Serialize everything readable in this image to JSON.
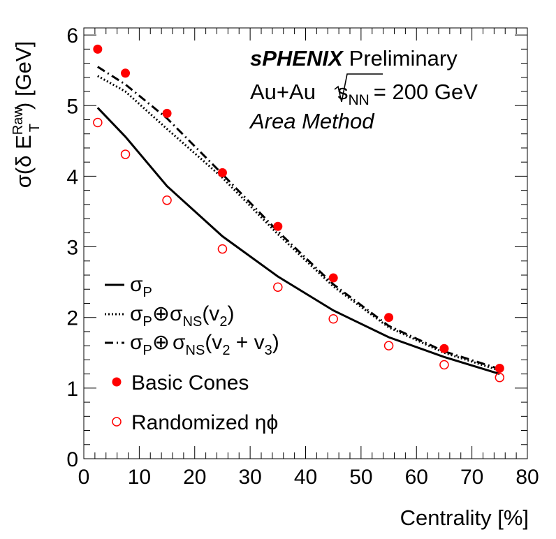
{
  "chart_data": {
    "type": "scatter",
    "xlabel": "Centrality [%]",
    "ylabel": "σ(δ E_T^Raw) [GeV]",
    "ylabel_parts": {
      "pre": "σ(δ E",
      "sub": "T",
      "sup": "Raw",
      "post": ") [GeV]"
    },
    "xlim": [
      0,
      80
    ],
    "ylim": [
      0,
      6.1
    ],
    "x_ticks": [
      0,
      10,
      20,
      30,
      40,
      50,
      60,
      70,
      80
    ],
    "y_ticks": [
      0,
      1,
      2,
      3,
      4,
      5,
      6
    ],
    "grid": false,
    "legend_position": "bottom-left",
    "annotations": {
      "experiment": "sPHENIX",
      "status": "Preliminary",
      "system_pre": "Au+Au",
      "system_s": "s",
      "system_sub": "NN",
      "system_post": "= 200 GeV",
      "method": "Area Method"
    },
    "series": [
      {
        "name": "σP",
        "legend": {
          "a": "σ",
          "a_sub": "P"
        },
        "style": "solid-line",
        "x": [
          2.5,
          7.5,
          15,
          25,
          35,
          45,
          55,
          65,
          75
        ],
        "y": [
          4.97,
          4.56,
          3.86,
          3.15,
          2.58,
          2.1,
          1.72,
          1.44,
          1.2
        ]
      },
      {
        "name": "σP⊕σNS(v2)",
        "legend": {
          "a": "σ",
          "a_sub": "P",
          "op": "⊕",
          "b": "σ",
          "b_sub": "NS",
          "arg_open": "(v",
          "arg_sub": "2",
          "arg_close": ")"
        },
        "style": "dotted-line",
        "x": [
          2.5,
          7.5,
          15,
          25,
          35,
          45,
          55,
          65,
          75
        ],
        "y": [
          5.42,
          5.2,
          4.67,
          3.98,
          3.18,
          2.44,
          1.86,
          1.5,
          1.25
        ]
      },
      {
        "name": "σP⊕σNS(v2 + v3)",
        "legend": {
          "a": "σ",
          "a_sub": "P",
          "op": "⊕",
          "b": "σ",
          "b_sub": "NS",
          "arg_open": "(v",
          "arg_sub": "2",
          "arg_mid": " + v",
          "arg_sub2": "3",
          "arg_close": ")"
        },
        "style": "dash-dot-line",
        "x": [
          2.5,
          7.5,
          15,
          25,
          35,
          45,
          55,
          65,
          75
        ],
        "y": [
          5.55,
          5.3,
          4.82,
          4.03,
          3.22,
          2.47,
          1.88,
          1.52,
          1.27
        ]
      },
      {
        "name": "Basic Cones",
        "style": "filled-circle",
        "color": "#ff0000",
        "x": [
          2.5,
          7.5,
          15,
          25,
          35,
          45,
          55,
          65,
          75
        ],
        "y": [
          5.8,
          5.46,
          4.89,
          4.05,
          3.29,
          2.56,
          2.0,
          1.56,
          1.28
        ]
      },
      {
        "name": "Randomized ηϕ",
        "style": "open-circle",
        "color": "#ff0000",
        "x": [
          2.5,
          7.5,
          15,
          25,
          35,
          45,
          55,
          65,
          75
        ],
        "y": [
          4.76,
          4.31,
          3.66,
          2.97,
          2.43,
          1.98,
          1.6,
          1.33,
          1.15
        ]
      }
    ]
  }
}
